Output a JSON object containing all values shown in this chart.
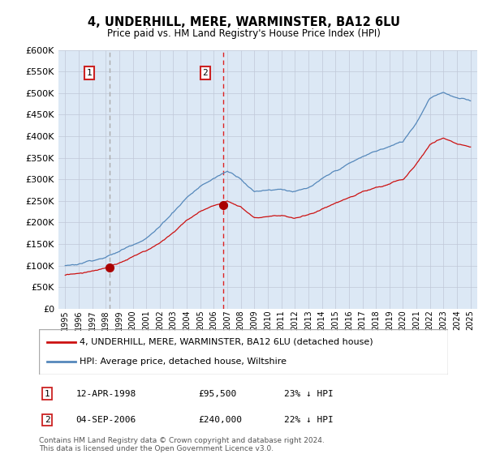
{
  "title": "4, UNDERHILL, MERE, WARMINSTER, BA12 6LU",
  "subtitle": "Price paid vs. HM Land Registry's House Price Index (HPI)",
  "legend_property": "4, UNDERHILL, MERE, WARMINSTER, BA12 6LU (detached house)",
  "legend_hpi": "HPI: Average price, detached house, Wiltshire",
  "footnote": "Contains HM Land Registry data © Crown copyright and database right 2024.\nThis data is licensed under the Open Government Licence v3.0.",
  "transactions": [
    {
      "label": "1",
      "date": "12-APR-1998",
      "price": "£95,500",
      "pct": "23%",
      "dir": "↓",
      "x": 1998.28
    },
    {
      "label": "2",
      "date": "04-SEP-2006",
      "price": "£240,000",
      "pct": "22%",
      "dir": "↓",
      "x": 2006.67
    }
  ],
  "vline1_x": 1998.28,
  "vline2_x": 2006.67,
  "dot1_y": 95500,
  "dot2_y": 240000,
  "ylim": [
    0,
    600000
  ],
  "yticks": [
    0,
    50000,
    100000,
    150000,
    200000,
    250000,
    300000,
    350000,
    400000,
    450000,
    500000,
    550000,
    600000
  ],
  "xlim": [
    1994.5,
    2025.5
  ],
  "background_color": "#dce8f5",
  "grid_color": "#c0c8d8",
  "hpi_color": "#5588bb",
  "property_color": "#cc1111",
  "vline1_color": "#aaaaaa",
  "vline2_color": "#dd2222",
  "dot_color": "#aa0000",
  "label_box_color": "#cc2222"
}
